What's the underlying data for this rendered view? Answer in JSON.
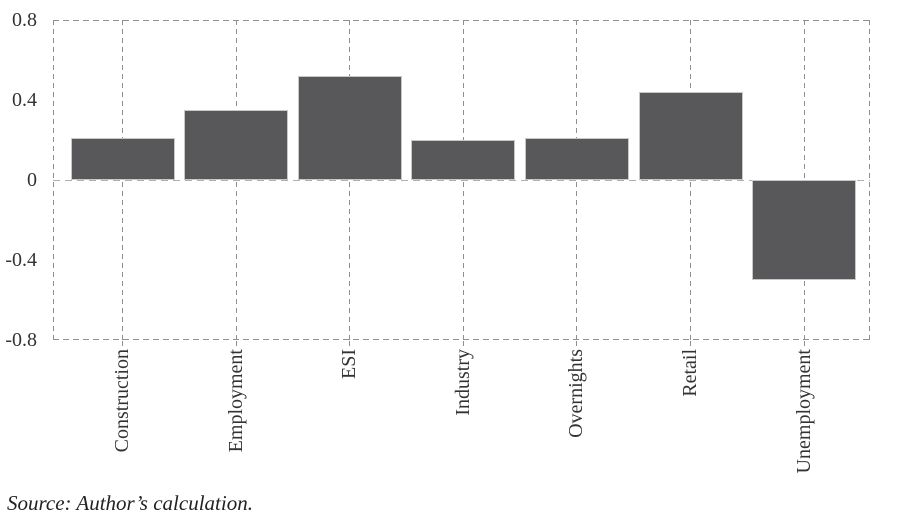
{
  "chart_data": {
    "type": "bar",
    "title": "",
    "xlabel": "",
    "ylabel": "",
    "categories": [
      "Construction",
      "Employment",
      "ESI",
      "Industry",
      "Overnights",
      "Retail",
      "Unemployment"
    ],
    "values": [
      0.21,
      0.35,
      0.52,
      0.2,
      0.21,
      0.44,
      -0.5
    ],
    "ylim": [
      -0.8,
      0.8
    ],
    "ytick_values": [
      0.8,
      0.4,
      0,
      -0.4,
      -0.8
    ],
    "ytick_labels": [
      "0.8",
      "0.4",
      "0",
      "-0.4",
      "-0.8"
    ],
    "legend_position": "none",
    "grid": "dashed vertical gridline at each category center; dashed rectangular plot border; dashed zero baseline",
    "bar_color": "#58585a",
    "bar_border_color": "#c8c8c8",
    "gridline_color": "#8f8f8f",
    "zero_line_color": "#b0b0b0",
    "text_color": "#333333"
  },
  "source_note": "Source: Author’s calculation."
}
